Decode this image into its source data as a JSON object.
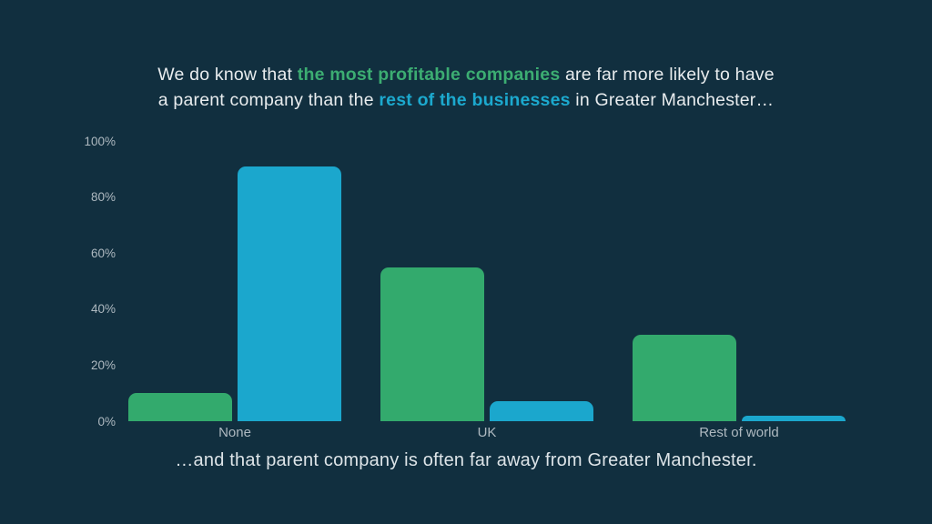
{
  "slide": {
    "background_color": "#112F3F"
  },
  "title": {
    "text_color": "#E8ECEE",
    "highlight_green": "#3CAD72",
    "highlight_blue": "#1CA9CE",
    "lines": [
      [
        {
          "text": "We do know that ",
          "style": "plain"
        },
        {
          "text": "the most profitable companies",
          "style": "green"
        },
        {
          "text": " are far more likely to have",
          "style": "plain"
        }
      ],
      [
        {
          "text": "a parent company than the ",
          "style": "plain"
        },
        {
          "text": "rest of the businesses",
          "style": "blue"
        },
        {
          "text": " in Greater Manchester…",
          "style": "plain"
        }
      ]
    ]
  },
  "caption": {
    "text": "…and that parent company is often far away from Greater Manchester.",
    "text_color": "#DDE4E8"
  },
  "chart_data": {
    "type": "bar",
    "categories": [
      "None",
      "UK",
      "Rest of world"
    ],
    "series": [
      {
        "name": "most-profitable-companies",
        "color": "#33AA6D",
        "values": [
          10,
          55,
          31
        ]
      },
      {
        "name": "rest-of-businesses",
        "color": "#1BA7CD",
        "values": [
          91,
          7,
          2
        ]
      }
    ],
    "title": "",
    "xlabel": "",
    "ylabel": "",
    "ylim": [
      0,
      100
    ],
    "yticks": [
      "0%",
      "20%",
      "40%",
      "60%",
      "80%",
      "100%"
    ],
    "ytick_values": [
      0,
      20,
      40,
      60,
      80,
      100
    ],
    "grid": false,
    "legend": "none",
    "axis_label_color": "#AEB9C0",
    "bar_corner_radius_px": 9
  }
}
